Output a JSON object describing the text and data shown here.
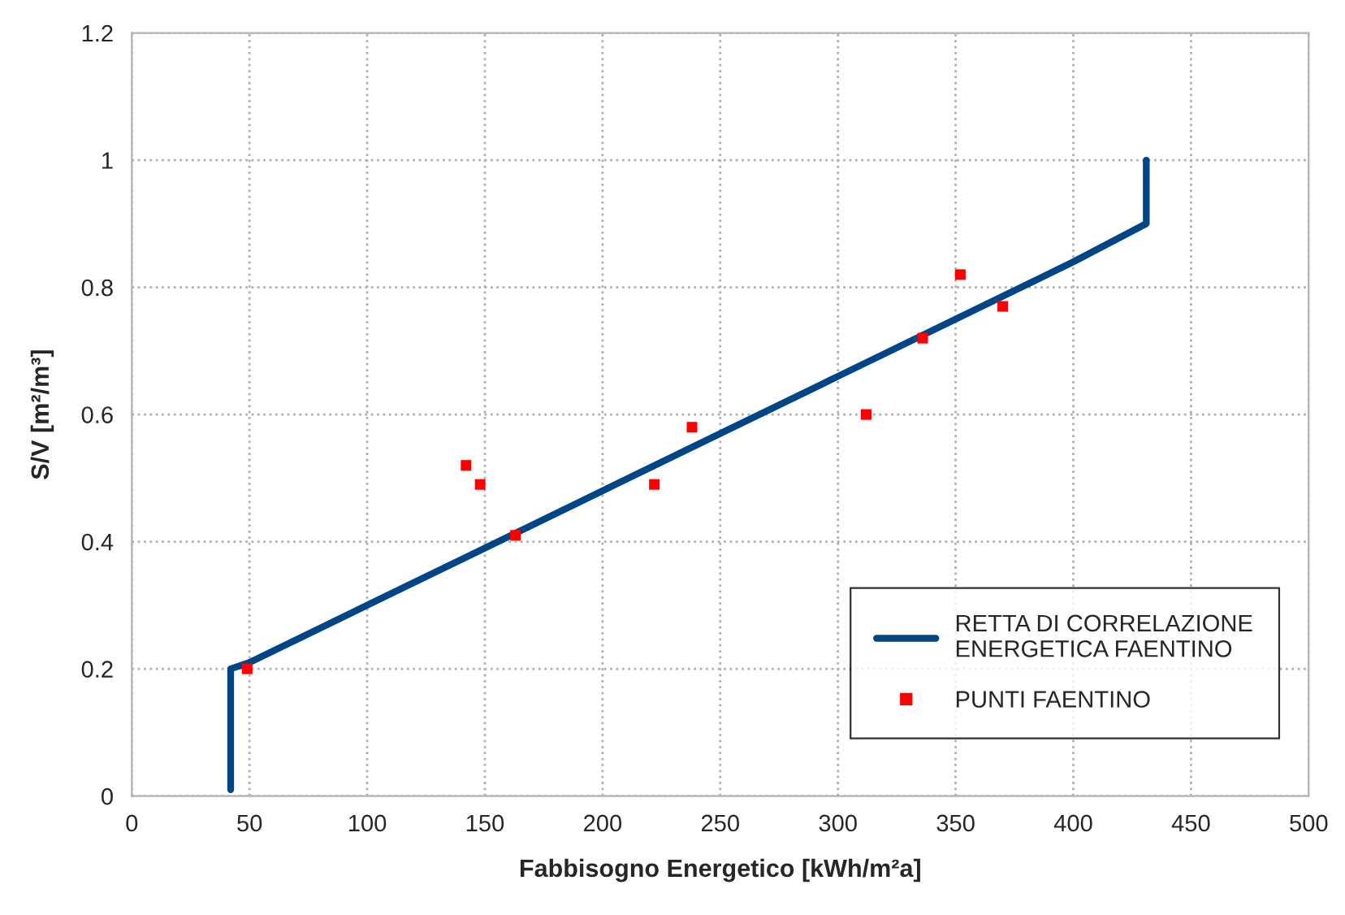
{
  "chart_data": {
    "type": "line",
    "xlabel": "Fabbisogno Energetico [kWh/m²a]",
    "ylabel": "S/V [m²/m³]",
    "series": [
      {
        "name": "RETTA DI CORRELAZIONE ENERGETICA FAENTINO",
        "color": "#004586",
        "marker": "none",
        "line_style": "solid",
        "x": [
          42,
          42,
          50,
          100,
          150,
          200,
          250,
          300,
          350,
          400,
          431,
          431
        ],
        "values": [
          0.01,
          0.2,
          0.21,
          0.3,
          0.39,
          0.48,
          0.57,
          0.66,
          0.75,
          0.84,
          0.9,
          1.0
        ]
      },
      {
        "name": "PUNTI FAENTINO",
        "type": "scatter",
        "color": "#ff0000",
        "marker": "square",
        "x": [
          49,
          142,
          148,
          163,
          222,
          238,
          312,
          336,
          352,
          370
        ],
        "values": [
          0.2,
          0.52,
          0.49,
          0.41,
          0.49,
          0.58,
          0.6,
          0.72,
          0.82,
          0.77
        ]
      }
    ],
    "xlim": [
      0,
      500
    ],
    "xticks": [
      0,
      50,
      100,
      150,
      200,
      250,
      300,
      350,
      400,
      450,
      500
    ],
    "ylim": [
      0,
      1.2
    ],
    "yticks": [
      0,
      0.2,
      0.4,
      0.6,
      0.8,
      1,
      1.2
    ],
    "grid": true,
    "legend": "bottom right"
  }
}
